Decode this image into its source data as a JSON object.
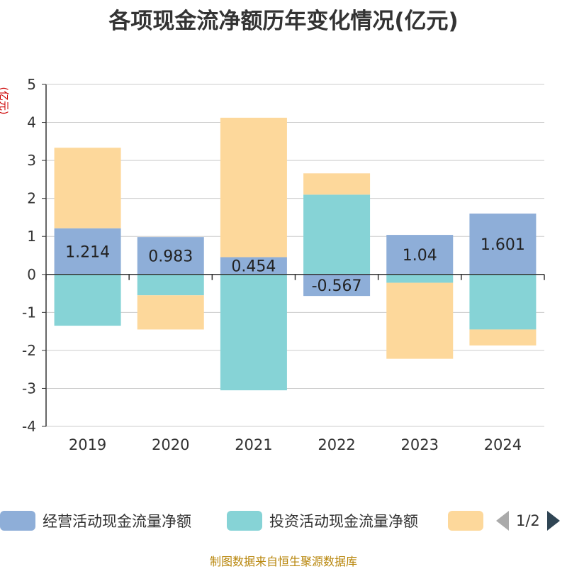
{
  "title": "各项现金流净额历年变化情况(亿元)",
  "unit_label": "(亿元)",
  "source": "制图数据来自恒生聚源数据库",
  "legend": {
    "items": [
      {
        "label": "经营活动现金流量净额",
        "color": "#8eaed8"
      },
      {
        "label": "投资活动现金流量净额",
        "color": "#86d3d6"
      },
      {
        "label": "",
        "color": "#fdd89b"
      }
    ],
    "page": "1/2"
  },
  "chart_data": {
    "type": "bar",
    "stacked": true,
    "categories": [
      "2019",
      "2020",
      "2021",
      "2022",
      "2023",
      "2024"
    ],
    "ylim": [
      -4,
      5
    ],
    "yticks": [
      -4,
      -3,
      -2,
      -1,
      0,
      1,
      2,
      3,
      4,
      5
    ],
    "grid": true,
    "series": [
      {
        "name": "经营活动现金流量净额",
        "color": "#8eaed8",
        "values": [
          1.214,
          0.983,
          0.454,
          -0.567,
          1.04,
          1.601
        ],
        "labels": [
          "1.214",
          "0.983",
          "0.454",
          "-0.567",
          "1.04",
          "1.601"
        ]
      },
      {
        "name": "投资活动现金流量净额",
        "color": "#86d3d6",
        "values": [
          -1.35,
          -0.55,
          -3.05,
          2.1,
          -0.22,
          -1.45
        ]
      },
      {
        "color": "#fdd89b",
        "values": [
          2.12,
          -0.9,
          3.67,
          0.56,
          -2.0,
          -0.42
        ]
      }
    ]
  }
}
